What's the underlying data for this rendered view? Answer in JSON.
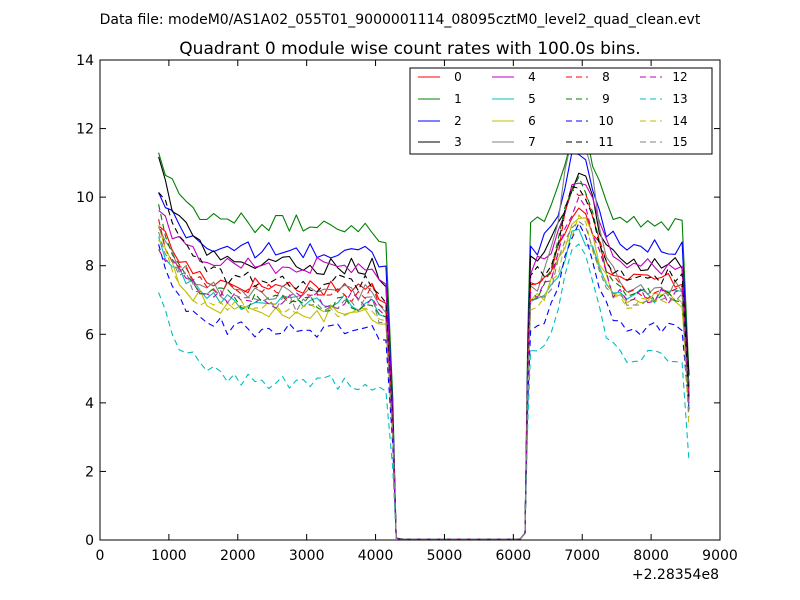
{
  "chart_data": {
    "type": "line",
    "suptitle": "Data file: modeM0/AS1A02_055T01_9000001114_08095cztM0_level2_quad_clean.evt",
    "title": "Quadrant 0 module wise count rates with 100.0s bins.",
    "xlabel": "",
    "ylabel": "",
    "xlim": [
      0,
      9000
    ],
    "ylim": [
      0,
      14
    ],
    "x_offset_label": "+2.28354e8",
    "xticks": [
      0,
      1000,
      2000,
      3000,
      4000,
      5000,
      6000,
      7000,
      8000,
      9000
    ],
    "xtick_labels": [
      "0",
      "1000",
      "2000",
      "3000",
      "4000",
      "5000",
      "6000",
      "7000",
      "8000",
      "9000"
    ],
    "yticks": [
      0,
      2,
      4,
      6,
      8,
      10,
      12,
      14
    ],
    "ytick_labels": [
      "0",
      "2",
      "4",
      "6",
      "8",
      "10",
      "12",
      "14"
    ],
    "legend_position": "top-right",
    "legend_columns": 4,
    "grid": false,
    "bin_width_s": 100,
    "segments": [
      {
        "x_start": 850,
        "x_end": 4150
      },
      {
        "x_start": 6150,
        "x_end": 8550
      }
    ],
    "series": [
      {
        "name": "0",
        "color": "#ff0000",
        "dash": "solid",
        "seg1": {
          "start": 9.3,
          "base": 7.4
        },
        "seg2": {
          "base": 7.6,
          "peak": 9.8,
          "end": 4.5
        }
      },
      {
        "name": "1",
        "color": "#008000",
        "dash": "solid",
        "seg1": {
          "start": 11.4,
          "base": 9.2
        },
        "seg2": {
          "base": 9.3,
          "peak": 12.0,
          "end": 4.8
        }
      },
      {
        "name": "2",
        "color": "#0000ff",
        "dash": "solid",
        "seg1": {
          "start": 10.2,
          "base": 8.4
        },
        "seg2": {
          "base": 8.5,
          "peak": 11.4,
          "end": 4.4
        }
      },
      {
        "name": "3",
        "color": "#000000",
        "dash": "solid",
        "seg1": {
          "start": 11.2,
          "base": 8.0
        },
        "seg2": {
          "base": 8.1,
          "peak": 10.6,
          "end": 4.8
        }
      },
      {
        "name": "4",
        "color": "#bf00bf",
        "dash": "solid",
        "seg1": {
          "start": 9.6,
          "base": 8.0
        },
        "seg2": {
          "base": 8.0,
          "peak": 10.6,
          "end": 4.2
        }
      },
      {
        "name": "5",
        "color": "#00bfbf",
        "dash": "solid",
        "seg1": {
          "start": 8.8,
          "base": 6.9
        },
        "seg2": {
          "base": 7.1,
          "peak": 9.0,
          "end": 3.8
        }
      },
      {
        "name": "6",
        "color": "#bfbf00",
        "dash": "solid",
        "seg1": {
          "start": 9.1,
          "base": 6.6
        },
        "seg2": {
          "base": 7.0,
          "peak": 9.6,
          "end": 4.0
        }
      },
      {
        "name": "7",
        "color": "#808080",
        "dash": "solid",
        "seg1": {
          "start": 9.0,
          "base": 7.2
        },
        "seg2": {
          "base": 7.3,
          "peak": 12.1,
          "end": 4.3
        }
      },
      {
        "name": "8",
        "color": "#ff0000",
        "dash": "dashed",
        "seg1": {
          "start": 9.2,
          "base": 7.2
        },
        "seg2": {
          "base": 7.3,
          "peak": 10.3,
          "end": 4.1
        }
      },
      {
        "name": "9",
        "color": "#008000",
        "dash": "dashed",
        "seg1": {
          "start": 9.6,
          "base": 6.9
        },
        "seg2": {
          "base": 7.2,
          "peak": 10.6,
          "end": 4.5
        }
      },
      {
        "name": "10",
        "color": "#0000ff",
        "dash": "dashed",
        "seg1": {
          "start": 8.4,
          "base": 6.1
        },
        "seg2": {
          "base": 6.2,
          "peak": 9.0,
          "end": 3.8
        }
      },
      {
        "name": "11",
        "color": "#000000",
        "dash": "dashed",
        "seg1": {
          "start": 10.4,
          "base": 7.5
        },
        "seg2": {
          "base": 7.7,
          "peak": 10.3,
          "end": 4.1
        }
      },
      {
        "name": "12",
        "color": "#bf00bf",
        "dash": "dashed",
        "seg1": {
          "start": 8.7,
          "base": 7.0
        },
        "seg2": {
          "base": 7.1,
          "peak": 9.8,
          "end": 3.9
        }
      },
      {
        "name": "13",
        "color": "#00bfbf",
        "dash": "dashed",
        "seg1": {
          "start": 7.4,
          "base": 4.6
        },
        "seg2": {
          "base": 5.3,
          "peak": 8.7,
          "end": 2.3
        }
      },
      {
        "name": "14",
        "color": "#bfbf00",
        "dash": "dashed",
        "seg1": {
          "start": 8.9,
          "base": 6.7
        },
        "seg2": {
          "base": 6.9,
          "peak": 9.3,
          "end": 3.3
        }
      },
      {
        "name": "15",
        "color": "#808080",
        "dash": "dashed",
        "seg1": {
          "start": 9.1,
          "base": 6.9
        },
        "seg2": {
          "base": 7.0,
          "peak": 9.4,
          "end": 3.6
        }
      }
    ]
  }
}
